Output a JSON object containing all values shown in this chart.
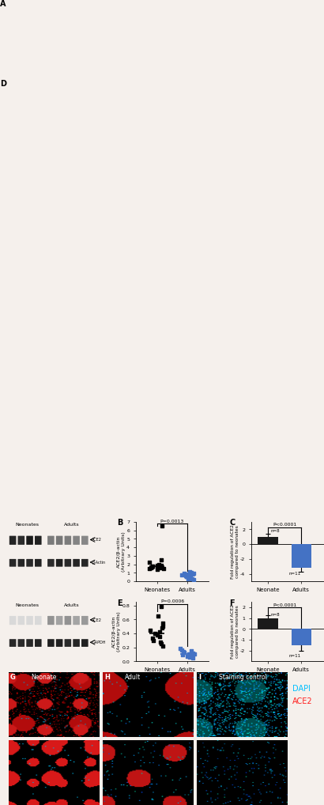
{
  "panel_B": {
    "neonates_y": [
      2.5,
      2.2,
      2.0,
      1.9,
      1.85,
      1.8,
      1.75,
      1.7,
      1.65,
      1.6,
      1.55,
      1.5,
      1.45,
      1.4,
      6.5
    ],
    "adults_y": [
      1.1,
      1.0,
      0.95,
      0.9,
      0.85,
      0.8,
      0.75,
      0.7,
      0.65,
      0.6,
      0.55,
      0.5,
      0.45,
      0.4,
      0.35,
      0.3,
      0.25,
      0.2
    ],
    "ylabel": "ACE2/β-actin\n(Arbitrary Units)",
    "xlabel_neo": "Neonates",
    "xlabel_adult": "Adults",
    "pvalue": "P=0.0013",
    "label": "B",
    "ylim": [
      0,
      7
    ],
    "yticks": [
      0,
      1,
      2,
      3,
      4,
      5,
      6,
      7
    ]
  },
  "panel_C": {
    "neonate_mean": 1.0,
    "neonate_err": 0.35,
    "adult_mean": -3.2,
    "adult_err": 0.5,
    "neonate_n": "n=8",
    "adult_n": "n=11",
    "ylabel": "Fold regulation of ACE2\ncompared to neonates",
    "xlabel_neo": "Neonate",
    "xlabel_adult": "Adults",
    "pvalue": "P<0.0001",
    "label": "C",
    "ylim": [
      -5,
      3
    ],
    "yticks": [
      -4,
      -2,
      0,
      2
    ],
    "neonate_color": "#1a1a1a",
    "adult_color": "#4472c4"
  },
  "panel_E": {
    "neonates_y": [
      0.65,
      0.55,
      0.5,
      0.48,
      0.45,
      0.42,
      0.4,
      0.38,
      0.35,
      0.33,
      0.3,
      0.28,
      0.25,
      0.22,
      0.78
    ],
    "adults_y": [
      0.18,
      0.16,
      0.15,
      0.14,
      0.13,
      0.12,
      0.11,
      0.1,
      0.09,
      0.08,
      0.07,
      0.06,
      0.05
    ],
    "ylabel": "ACE2/β-actin\n(Arbitrary Units)",
    "xlabel_neo": "Neonates",
    "xlabel_adult": "Adults",
    "pvalue": "P=0.0006",
    "label": "E",
    "ylim": [
      0,
      0.85
    ],
    "yticks": [
      0.0,
      0.2,
      0.4,
      0.6,
      0.8
    ]
  },
  "panel_F": {
    "neonate_mean": 1.0,
    "neonate_err": 0.3,
    "adult_mean": -1.5,
    "adult_err": 0.5,
    "neonate_n": "n=8",
    "adult_n": "n=11",
    "ylabel": "Fold regulation of ACE2\ncompared to neonates",
    "xlabel_neo": "Neonate",
    "xlabel_adult": "Adults",
    "pvalue": "P<0.0001",
    "label": "F",
    "ylim": [
      -3,
      2.5
    ],
    "yticks": [
      -2,
      -1,
      0,
      1,
      2
    ],
    "neonate_color": "#1a1a1a",
    "adult_color": "#4472c4"
  },
  "wb_A": {
    "label": "A",
    "neonates_label": "Neonates",
    "adults_label": "Adults",
    "band1": "ACE2",
    "band2": "β-Actin"
  },
  "wb_D": {
    "label": "D",
    "neonates_label": "Neonates",
    "adults_label": "Adults",
    "band1": "ACE2",
    "band2": "GAPDH"
  },
  "panel_G": {
    "label": "G",
    "title": "Neonate"
  },
  "panel_H": {
    "label": "H",
    "title": "Adult"
  },
  "panel_I": {
    "label": "I",
    "title": "Staining control"
  },
  "dapi_color": "#00bfff",
  "ace2_color": "#ff2020",
  "background_color": "#f5f0ec"
}
